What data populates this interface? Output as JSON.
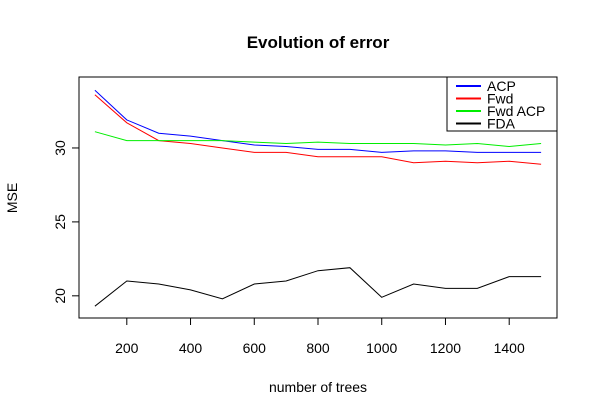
{
  "chart_data": {
    "type": "line",
    "title": "Evolution of error",
    "xlabel": "number of trees",
    "ylabel": "MSE",
    "x": [
      100,
      200,
      300,
      400,
      500,
      600,
      700,
      800,
      900,
      1000,
      1100,
      1200,
      1300,
      1400,
      1500
    ],
    "xlim": [
      50,
      1550
    ],
    "ylim": [
      18.5,
      34.8
    ],
    "xticks": [
      200,
      400,
      600,
      800,
      1000,
      1200,
      1400
    ],
    "yticks": [
      20,
      25,
      30
    ],
    "grid": false,
    "legend_position": "top-right",
    "series": [
      {
        "name": "ACP",
        "color": "#0000ff",
        "values": [
          33.9,
          31.9,
          31.0,
          30.8,
          30.5,
          30.2,
          30.1,
          29.9,
          29.9,
          29.7,
          29.8,
          29.8,
          29.7,
          29.7,
          29.7
        ]
      },
      {
        "name": "Fwd",
        "color": "#ff0000",
        "values": [
          33.6,
          31.7,
          30.5,
          30.3,
          30.0,
          29.7,
          29.7,
          29.4,
          29.4,
          29.4,
          29.0,
          29.1,
          29.0,
          29.1,
          28.9
        ]
      },
      {
        "name": "Fwd ACP",
        "color": "#00ee00",
        "values": [
          31.1,
          30.5,
          30.5,
          30.5,
          30.5,
          30.4,
          30.3,
          30.4,
          30.3,
          30.3,
          30.3,
          30.2,
          30.3,
          30.1,
          30.3
        ]
      },
      {
        "name": "FDA",
        "color": "#000000",
        "values": [
          19.3,
          21.0,
          20.8,
          20.4,
          19.8,
          20.8,
          21.0,
          21.7,
          21.9,
          19.9,
          20.8,
          20.5,
          20.5,
          21.3,
          21.3
        ]
      }
    ]
  }
}
